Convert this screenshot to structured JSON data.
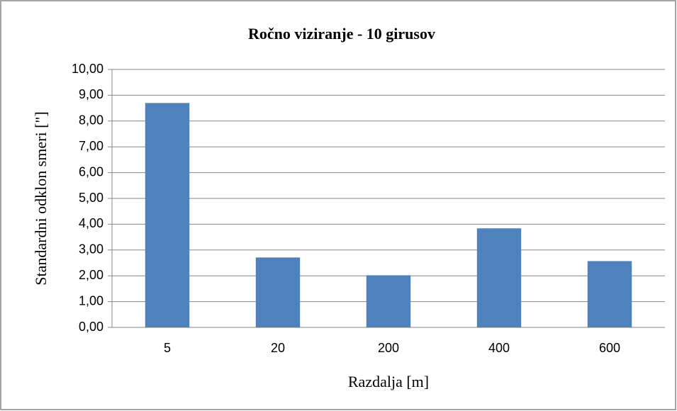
{
  "chart_data": {
    "type": "bar",
    "title": "Ročno viziranje - 10 girusov",
    "x_label": "Razdalja [m]",
    "y_label": "Standardni odklon smeri [\"]",
    "categories": [
      "5",
      "20",
      "200",
      "400",
      "600"
    ],
    "values": [
      8.7,
      2.71,
      2.02,
      3.84,
      2.57
    ],
    "color": "#4f81bd",
    "ylim": [
      0,
      10
    ],
    "yticks": [
      {
        "value": 0,
        "label": "0,00"
      },
      {
        "value": 1,
        "label": "1,00"
      },
      {
        "value": 2,
        "label": "2,00"
      },
      {
        "value": 3,
        "label": "3,00"
      },
      {
        "value": 4,
        "label": "4,00"
      },
      {
        "value": 5,
        "label": "5,00"
      },
      {
        "value": 6,
        "label": "6,00"
      },
      {
        "value": 7,
        "label": "7,00"
      },
      {
        "value": 8,
        "label": "8,00"
      },
      {
        "value": 9,
        "label": "9,00"
      },
      {
        "value": 10,
        "label": "10,00"
      }
    ],
    "grid": true
  }
}
